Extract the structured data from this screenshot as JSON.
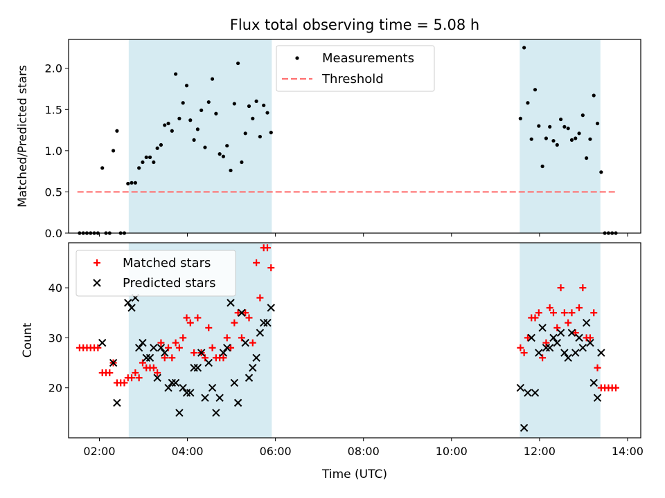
{
  "figure": {
    "title": "Flux total observing time = 5.08 h"
  },
  "chart_data": [
    {
      "type": "scatter",
      "ylabel": "Matched/Predicted stars",
      "xlim": [
        "01:18",
        "14:18"
      ],
      "ylim": [
        0,
        2.35
      ],
      "x_ticks": [
        "02:00",
        "04:00",
        "06:00",
        "08:00",
        "10:00",
        "12:00",
        "14:00"
      ],
      "y_ticks": [
        "0.0",
        "0.5",
        "1.0",
        "1.5",
        "2.0"
      ],
      "legend_position": "top-center",
      "shaded_spans": [
        [
          "02:40",
          "05:55"
        ],
        [
          "11:33",
          "13:23"
        ]
      ],
      "shade_color": "#add8e6",
      "threshold": {
        "name": "Threshold",
        "y": 0.5,
        "x_start": "01:30",
        "x_end": "13:45",
        "color": "#ff7070"
      },
      "series": [
        {
          "name": "Measurements",
          "color": "#000000",
          "points": [
            [
              "01:33",
              0
            ],
            [
              "01:38",
              0
            ],
            [
              "01:43",
              0
            ],
            [
              "01:48",
              0
            ],
            [
              "01:53",
              0
            ],
            [
              "01:58",
              0
            ],
            [
              "02:04",
              0.79
            ],
            [
              "02:09",
              0
            ],
            [
              "02:14",
              0
            ],
            [
              "02:19",
              1.0
            ],
            [
              "02:24",
              1.24
            ],
            [
              "02:29",
              0
            ],
            [
              "02:34",
              0
            ],
            [
              "02:39",
              0.6
            ],
            [
              "02:44",
              0.61
            ],
            [
              "02:49",
              0.61
            ],
            [
              "02:54",
              0.79
            ],
            [
              "02:59",
              0.86
            ],
            [
              "03:04",
              0.92
            ],
            [
              "03:09",
              0.92
            ],
            [
              "03:14",
              0.86
            ],
            [
              "03:19",
              1.03
            ],
            [
              "03:24",
              1.07
            ],
            [
              "03:29",
              1.31
            ],
            [
              "03:34",
              1.33
            ],
            [
              "03:39",
              1.24
            ],
            [
              "03:44",
              1.93
            ],
            [
              "03:49",
              1.39
            ],
            [
              "03:54",
              1.58
            ],
            [
              "03:59",
              1.79
            ],
            [
              "04:04",
              1.37
            ],
            [
              "04:09",
              1.13
            ],
            [
              "04:14",
              1.26
            ],
            [
              "04:19",
              1.49
            ],
            [
              "04:24",
              1.04
            ],
            [
              "04:29",
              1.59
            ],
            [
              "04:34",
              1.87
            ],
            [
              "04:39",
              1.45
            ],
            [
              "04:44",
              0.96
            ],
            [
              "04:49",
              0.93
            ],
            [
              "04:54",
              1.06
            ],
            [
              "04:59",
              0.76
            ],
            [
              "05:04",
              1.57
            ],
            [
              "05:09",
              2.06
            ],
            [
              "05:14",
              0.86
            ],
            [
              "05:19",
              1.21
            ],
            [
              "05:24",
              1.54
            ],
            [
              "05:29",
              1.39
            ],
            [
              "05:34",
              1.6
            ],
            [
              "05:39",
              1.17
            ],
            [
              "05:44",
              1.55
            ],
            [
              "05:49",
              1.46
            ],
            [
              "05:54",
              1.22
            ],
            [
              "11:34",
              1.39
            ],
            [
              "11:39",
              2.25
            ],
            [
              "11:44",
              1.58
            ],
            [
              "11:49",
              1.14
            ],
            [
              "11:54",
              1.74
            ],
            [
              "11:59",
              1.3
            ],
            [
              "12:04",
              0.81
            ],
            [
              "12:09",
              1.15
            ],
            [
              "12:14",
              1.29
            ],
            [
              "12:19",
              1.12
            ],
            [
              "12:24",
              1.07
            ],
            [
              "12:29",
              1.38
            ],
            [
              "12:34",
              1.29
            ],
            [
              "12:39",
              1.27
            ],
            [
              "12:44",
              1.13
            ],
            [
              "12:49",
              1.15
            ],
            [
              "12:54",
              1.21
            ],
            [
              "12:59",
              1.43
            ],
            [
              "13:04",
              0.91
            ],
            [
              "13:09",
              1.14
            ],
            [
              "13:14",
              1.67
            ],
            [
              "13:19",
              1.33
            ],
            [
              "13:24",
              0.74
            ],
            [
              "13:29",
              0
            ],
            [
              "13:34",
              0
            ],
            [
              "13:39",
              0
            ],
            [
              "13:44",
              0
            ]
          ]
        }
      ]
    },
    {
      "type": "scatter",
      "xlabel": "Time (UTC)",
      "ylabel": "Count",
      "xlim": [
        "01:18",
        "14:18"
      ],
      "ylim": [
        10,
        49
      ],
      "x_ticks": [
        "02:00",
        "04:00",
        "06:00",
        "08:00",
        "10:00",
        "12:00",
        "14:00"
      ],
      "y_ticks": [
        "20",
        "30",
        "40"
      ],
      "legend_position": "top-left",
      "shaded_spans": [
        [
          "02:40",
          "05:55"
        ],
        [
          "11:33",
          "13:23"
        ]
      ],
      "series": [
        {
          "name": "Matched stars",
          "marker": "plus",
          "color": "#ff0000",
          "points": [
            [
              "01:33",
              28
            ],
            [
              "01:38",
              28
            ],
            [
              "01:43",
              28
            ],
            [
              "01:48",
              28
            ],
            [
              "01:53",
              28
            ],
            [
              "01:58",
              28
            ],
            [
              "02:04",
              23
            ],
            [
              "02:09",
              23
            ],
            [
              "02:14",
              23
            ],
            [
              "02:19",
              25
            ],
            [
              "02:24",
              21
            ],
            [
              "02:29",
              21
            ],
            [
              "02:34",
              21
            ],
            [
              "02:39",
              22
            ],
            [
              "02:44",
              22
            ],
            [
              "02:49",
              23
            ],
            [
              "02:54",
              22
            ],
            [
              "02:59",
              25
            ],
            [
              "03:04",
              24
            ],
            [
              "03:09",
              24
            ],
            [
              "03:14",
              24
            ],
            [
              "03:19",
              23
            ],
            [
              "03:24",
              29
            ],
            [
              "03:29",
              26
            ],
            [
              "03:34",
              28
            ],
            [
              "03:39",
              26
            ],
            [
              "03:44",
              29
            ],
            [
              "03:49",
              28
            ],
            [
              "03:54",
              30
            ],
            [
              "03:59",
              34
            ],
            [
              "04:04",
              33
            ],
            [
              "04:09",
              27
            ],
            [
              "04:14",
              34
            ],
            [
              "04:19",
              27
            ],
            [
              "04:24",
              26
            ],
            [
              "04:29",
              32
            ],
            [
              "04:34",
              28
            ],
            [
              "04:39",
              26
            ],
            [
              "04:44",
              26
            ],
            [
              "04:49",
              26
            ],
            [
              "04:54",
              30
            ],
            [
              "04:59",
              28
            ],
            [
              "05:04",
              33
            ],
            [
              "05:09",
              35
            ],
            [
              "05:14",
              30
            ],
            [
              "05:19",
              35
            ],
            [
              "05:24",
              34
            ],
            [
              "05:29",
              29
            ],
            [
              "05:34",
              45
            ],
            [
              "05:39",
              38
            ],
            [
              "05:44",
              48
            ],
            [
              "05:49",
              48
            ],
            [
              "05:54",
              44
            ],
            [
              "11:34",
              28
            ],
            [
              "11:39",
              27
            ],
            [
              "11:44",
              30
            ],
            [
              "11:49",
              34
            ],
            [
              "11:54",
              34
            ],
            [
              "11:59",
              35
            ],
            [
              "12:04",
              26
            ],
            [
              "12:09",
              29
            ],
            [
              "12:14",
              36
            ],
            [
              "12:19",
              35
            ],
            [
              "12:24",
              32
            ],
            [
              "12:29",
              40
            ],
            [
              "12:34",
              35
            ],
            [
              "12:39",
              33
            ],
            [
              "12:44",
              35
            ],
            [
              "12:49",
              31
            ],
            [
              "12:54",
              36
            ],
            [
              "12:59",
              40
            ],
            [
              "13:04",
              30
            ],
            [
              "13:09",
              30
            ],
            [
              "13:14",
              35
            ],
            [
              "13:19",
              24
            ],
            [
              "13:24",
              20
            ],
            [
              "13:29",
              20
            ],
            [
              "13:34",
              20
            ],
            [
              "13:39",
              20
            ],
            [
              "13:44",
              20
            ]
          ]
        },
        {
          "name": "Predicted stars",
          "marker": "x",
          "color": "#000000",
          "points": [
            [
              "02:04",
              29
            ],
            [
              "02:19",
              25
            ],
            [
              "02:24",
              17
            ],
            [
              "02:39",
              37
            ],
            [
              "02:44",
              36
            ],
            [
              "02:49",
              38
            ],
            [
              "02:54",
              28
            ],
            [
              "02:59",
              29
            ],
            [
              "03:04",
              26
            ],
            [
              "03:09",
              26
            ],
            [
              "03:14",
              28
            ],
            [
              "03:19",
              22
            ],
            [
              "03:24",
              28
            ],
            [
              "03:29",
              27
            ],
            [
              "03:34",
              20
            ],
            [
              "03:39",
              21
            ],
            [
              "03:44",
              21
            ],
            [
              "03:49",
              15
            ],
            [
              "03:54",
              20
            ],
            [
              "03:59",
              19
            ],
            [
              "04:04",
              19
            ],
            [
              "04:09",
              24
            ],
            [
              "04:14",
              24
            ],
            [
              "04:19",
              27
            ],
            [
              "04:24",
              18
            ],
            [
              "04:29",
              25
            ],
            [
              "04:34",
              20
            ],
            [
              "04:39",
              15
            ],
            [
              "04:44",
              18
            ],
            [
              "04:49",
              27
            ],
            [
              "04:54",
              28
            ],
            [
              "04:59",
              37
            ],
            [
              "05:04",
              21
            ],
            [
              "05:09",
              17
            ],
            [
              "05:14",
              35
            ],
            [
              "05:19",
              29
            ],
            [
              "05:24",
              22
            ],
            [
              "05:29",
              24
            ],
            [
              "05:34",
              26
            ],
            [
              "05:39",
              31
            ],
            [
              "05:44",
              33
            ],
            [
              "05:49",
              33
            ],
            [
              "05:54",
              36
            ],
            [
              "11:34",
              20
            ],
            [
              "11:39",
              12
            ],
            [
              "11:44",
              19
            ],
            [
              "11:49",
              30
            ],
            [
              "11:54",
              19
            ],
            [
              "11:59",
              27
            ],
            [
              "12:04",
              32
            ],
            [
              "12:09",
              28
            ],
            [
              "12:14",
              28
            ],
            [
              "12:19",
              30
            ],
            [
              "12:24",
              29
            ],
            [
              "12:29",
              31
            ],
            [
              "12:34",
              27
            ],
            [
              "12:39",
              26
            ],
            [
              "12:44",
              31
            ],
            [
              "12:49",
              27
            ],
            [
              "12:54",
              30
            ],
            [
              "12:59",
              28
            ],
            [
              "13:04",
              33
            ],
            [
              "13:09",
              29
            ],
            [
              "13:14",
              21
            ],
            [
              "13:19",
              18
            ],
            [
              "13:24",
              27
            ]
          ]
        }
      ]
    }
  ]
}
